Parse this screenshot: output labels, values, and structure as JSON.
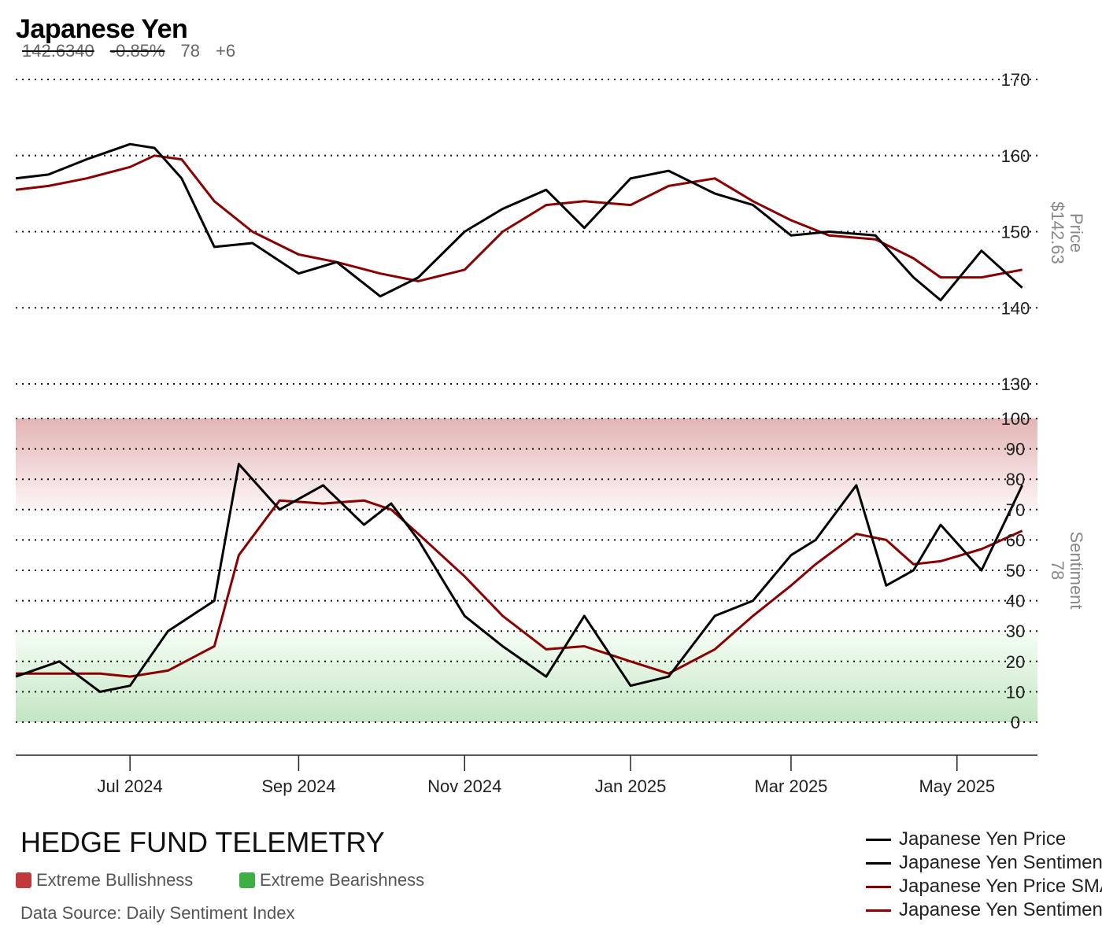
{
  "header": {
    "title": "Japanese Yen",
    "price": "142.6340",
    "change_pct": "-0.85%",
    "sentiment": "78",
    "sentiment_change": "+6"
  },
  "footer": {
    "brand": "HEDGE FUND TELEMETRY",
    "key_bull": "Extreme Bullishness",
    "key_bear": "Extreme Bearishness",
    "source": "Data Source: Daily Sentiment Index",
    "bull_color": "#c0393b",
    "bear_color": "#3cb043"
  },
  "legend": [
    {
      "label": "Japanese Yen Price",
      "color": "#000000"
    },
    {
      "label": "Japanese Yen Sentiment",
      "color": "#000000"
    },
    {
      "label": "Japanese Yen Price SMA",
      "color": "#8b0000"
    },
    {
      "label": "Japanese Yen Sentiment SMA",
      "color": "#8b0000"
    }
  ],
  "chart_data": [
    {
      "type": "line",
      "panel": "price",
      "ylabel": "Price",
      "current_label": "$142.63",
      "yticks": [
        170,
        160,
        150,
        140,
        130
      ],
      "ylim": [
        130,
        170
      ],
      "x": [
        "2024-05-20",
        "2024-06-01",
        "2024-06-15",
        "2024-07-01",
        "2024-07-10",
        "2024-07-20",
        "2024-08-01",
        "2024-08-15",
        "2024-09-01",
        "2024-09-15",
        "2024-10-01",
        "2024-10-15",
        "2024-11-01",
        "2024-11-15",
        "2024-12-01",
        "2024-12-15",
        "2025-01-01",
        "2025-01-15",
        "2025-02-01",
        "2025-02-15",
        "2025-03-01",
        "2025-03-15",
        "2025-04-01",
        "2025-04-15",
        "2025-04-25",
        "2025-05-10",
        "2025-05-25"
      ],
      "series": [
        {
          "name": "Japanese Yen Price",
          "color": "#000000",
          "values": [
            157,
            157.5,
            159.5,
            161.5,
            161,
            157,
            148,
            148.5,
            144.5,
            146,
            141.5,
            144,
            150,
            153,
            155.5,
            150.5,
            157,
            158,
            155,
            153.5,
            149.5,
            150,
            149.5,
            144,
            141,
            147.5,
            142.63
          ]
        },
        {
          "name": "Japanese Yen Price SMA",
          "color": "#8b0000",
          "values": [
            155.5,
            156,
            157,
            158.5,
            160,
            159.5,
            154,
            150,
            147,
            146,
            144.5,
            143.5,
            145,
            150,
            153.5,
            154,
            153.5,
            156,
            157,
            154,
            151.5,
            149.5,
            149,
            146.5,
            144,
            144,
            145
          ]
        }
      ]
    },
    {
      "type": "line",
      "panel": "sentiment",
      "ylabel": "Sentiment",
      "current_label": "78",
      "yticks": [
        100,
        90,
        80,
        70,
        60,
        50,
        40,
        30,
        20,
        10,
        0
      ],
      "ylim": [
        0,
        100
      ],
      "x": [
        "2024-05-20",
        "2024-06-05",
        "2024-06-20",
        "2024-07-01",
        "2024-07-15",
        "2024-08-01",
        "2024-08-10",
        "2024-08-25",
        "2024-09-10",
        "2024-09-25",
        "2024-10-05",
        "2024-10-15",
        "2024-11-01",
        "2024-11-15",
        "2024-12-01",
        "2024-12-15",
        "2025-01-01",
        "2025-01-15",
        "2025-02-01",
        "2025-02-15",
        "2025-03-01",
        "2025-03-10",
        "2025-03-25",
        "2025-04-05",
        "2025-04-15",
        "2025-04-25",
        "2025-05-10",
        "2025-05-25"
      ],
      "series": [
        {
          "name": "Japanese Yen Sentiment",
          "color": "#000000",
          "values": [
            15,
            20,
            10,
            12,
            30,
            40,
            85,
            70,
            78,
            65,
            72,
            60,
            35,
            25,
            15,
            35,
            12,
            15,
            35,
            40,
            55,
            60,
            78,
            45,
            50,
            65,
            50,
            78
          ]
        },
        {
          "name": "Japanese Yen Sentiment SMA",
          "color": "#8b0000",
          "values": [
            16,
            16,
            16,
            15,
            17,
            25,
            55,
            73,
            72,
            73,
            70,
            62,
            48,
            35,
            24,
            25,
            20,
            16,
            24,
            35,
            45,
            52,
            62,
            60,
            52,
            53,
            57,
            63
          ]
        }
      ]
    }
  ],
  "xaxis": {
    "ticks": [
      "Jul 2024",
      "Sep 2024",
      "Nov 2024",
      "Jan 2025",
      "Mar 2025",
      "May 2025"
    ],
    "tick_dates": [
      "2024-07-01",
      "2024-09-01",
      "2024-11-01",
      "2025-01-01",
      "2025-03-01",
      "2025-05-01"
    ],
    "start": "2024-05-20",
    "end": "2025-05-30"
  }
}
